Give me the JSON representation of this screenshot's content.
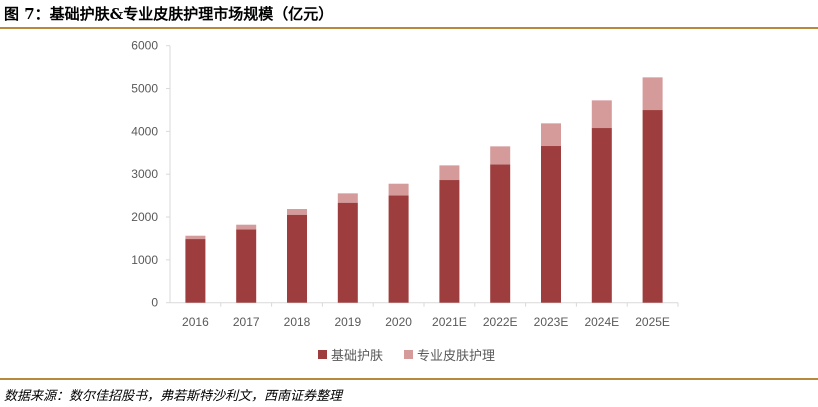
{
  "title": "图 7：基础护肤&专业皮肤护理市场规模（亿元）",
  "source": "数据来源：数尔佳招股书，弗若斯特沙利文，西南证券整理",
  "colors": {
    "series1": "#9e3d3d",
    "series2": "#d59b9b",
    "rule": "#b58a3c"
  },
  "chart_data": {
    "type": "bar",
    "stacked": true,
    "title": "基础护肤&专业皮肤护理市场规模（亿元）",
    "categories": [
      "2016",
      "2017",
      "2018",
      "2019",
      "2020",
      "2021E",
      "2022E",
      "2023E",
      "2024E",
      "2025E"
    ],
    "series": [
      {
        "name": "基础护肤",
        "values": [
          1486,
          1712,
          2054,
          2335,
          2506,
          2864,
          3230,
          3658,
          4078,
          4498
        ]
      },
      {
        "name": "专业皮肤护理",
        "values": [
          78,
          109,
          133,
          218,
          272,
          342,
          420,
          529,
          646,
          763
        ]
      }
    ],
    "yticks": [
      "0",
      "1000",
      "2000",
      "3000",
      "4000",
      "5000",
      "6000"
    ],
    "ylim": [
      0,
      6000
    ],
    "grid": false,
    "legend": "bottom"
  }
}
